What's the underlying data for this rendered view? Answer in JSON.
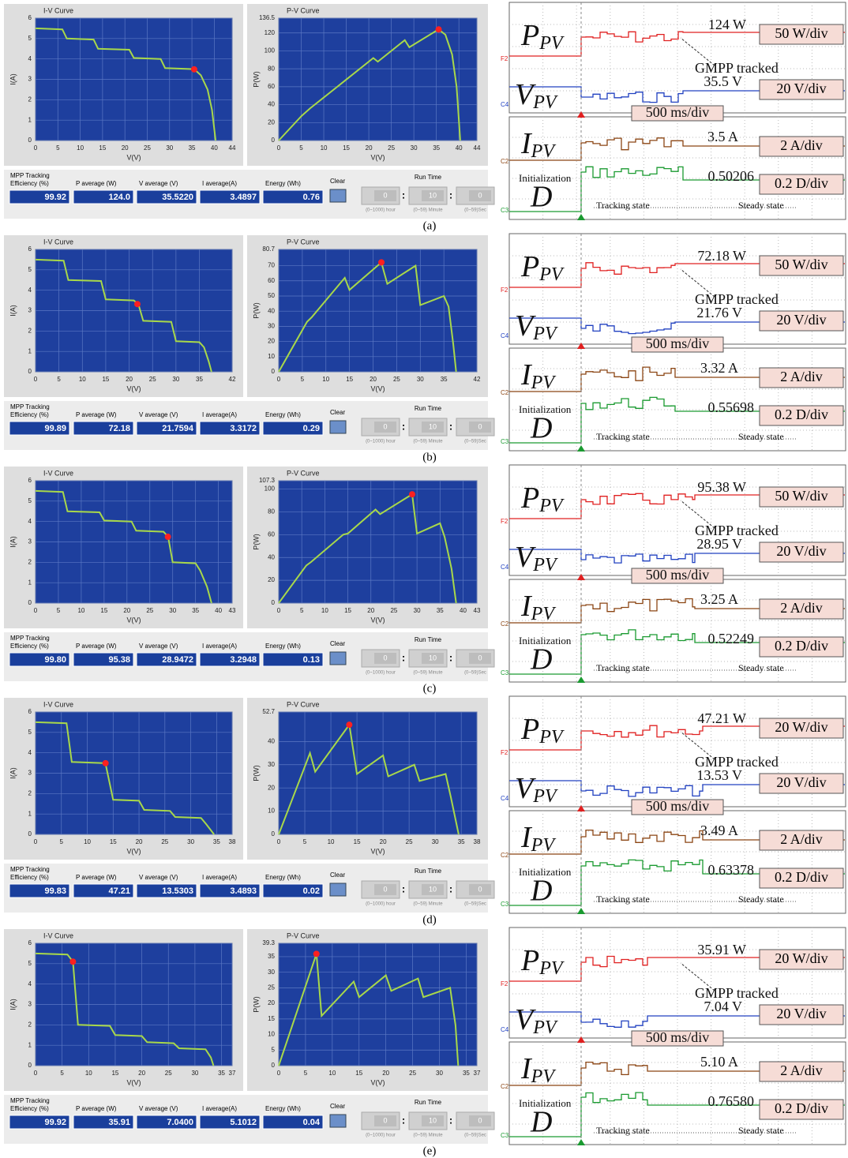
{
  "ui": {
    "eff_1": "MPP Tracking",
    "eff_2": "Efficiency (%)",
    "p_avg": "P average  (W)",
    "v_avg": "V average (V)",
    "i_avg": "I average(A)",
    "energy": "Energy  (Wh)",
    "clear": "Clear",
    "run_time": "Run Time",
    "hour_val": "0",
    "min_val": "10",
    "sec_val": "0",
    "colon": ":",
    "hour": "(0~1000) hour",
    "minute": "(0~59) Minute",
    "sec": "(0~59)Sec",
    "ch_p": "F2",
    "ch_v": "C4",
    "ch_i": "C2",
    "ch_d": "C3",
    "sym_p": {
      "main": "P",
      "sub": "PV"
    },
    "sym_v": {
      "main": "V",
      "sub": "PV"
    },
    "sym_i": {
      "main": "I",
      "sub": "PV"
    },
    "sym_d": "D",
    "gmpp": "GMPP tracked",
    "v_div": "20 V/div",
    "t_div": "500 ms/div",
    "i_div": "2 A/div",
    "d_div": "0.2 D/div",
    "init": "Initialization",
    "tracking": "Tracking state",
    "steady": "Steady state"
  },
  "panels": [
    {
      "label": "(a)",
      "iv_chart": {
        "type": "line",
        "title": "I-V Curve",
        "x_label": "V(V)",
        "y_label": "I(A)",
        "color": "#a8d84a",
        "marker_color": "#ff2020",
        "grid": true,
        "xlim": [
          0,
          44
        ],
        "xticks": [
          0,
          5,
          10,
          15,
          20,
          25,
          30,
          35,
          40,
          44
        ],
        "ylim": [
          0,
          6
        ],
        "yticks": [
          0,
          1,
          2,
          3,
          4,
          5,
          6
        ],
        "x": [
          0,
          6,
          7,
          13,
          14,
          21,
          22,
          28,
          29,
          35.5,
          37,
          38.5,
          39.5,
          40.3
        ],
        "values": [
          5.5,
          5.45,
          5.0,
          4.95,
          4.5,
          4.45,
          4.05,
          4.0,
          3.55,
          3.5,
          3.2,
          2.5,
          1.5,
          0
        ],
        "mpp": {
          "x": 35.5,
          "y": 3.49
        }
      },
      "pv_chart": {
        "type": "line",
        "title": "P-V Curve",
        "x_label": "V(V)",
        "y_label": "P(W)",
        "color": "#a8d84a",
        "marker_color": "#ff2020",
        "grid": true,
        "xlim": [
          0,
          44
        ],
        "xticks": [
          0,
          5,
          10,
          15,
          20,
          25,
          30,
          35,
          40,
          44
        ],
        "ylim": [
          0,
          136.5
        ],
        "yticks": [
          0,
          20,
          40,
          60,
          80,
          100,
          120,
          136.5
        ],
        "x": [
          0,
          5,
          7,
          13,
          14,
          21,
          22,
          28,
          29,
          35.5,
          37,
          38.5,
          39.5,
          40.3
        ],
        "values": [
          0,
          27,
          36,
          60,
          64,
          92,
          88,
          112,
          104,
          124,
          118,
          96,
          60,
          0
        ],
        "mpp": {
          "x": 35.5,
          "y": 124
        }
      },
      "stats": {
        "efficiency": "99.92",
        "p_avg": "124.0",
        "v_avg": "35.5220",
        "i_avg": "3.4897",
        "energy": "0.76"
      },
      "scope": {
        "p": "124 W",
        "p_div": "50 W/div",
        "v": "35.5 V",
        "i": "3.5 A",
        "d": "0.50206"
      }
    },
    {
      "label": "(b)",
      "iv_chart": {
        "type": "line",
        "title": "I-V Curve",
        "x_label": "V(V)",
        "y_label": "I(A)",
        "color": "#a8d84a",
        "marker_color": "#ff2020",
        "grid": true,
        "xlim": [
          0,
          42
        ],
        "xticks": [
          0,
          5,
          10,
          15,
          20,
          25,
          30,
          35,
          42
        ],
        "ylim": [
          0,
          6
        ],
        "yticks": [
          0,
          1,
          2,
          3,
          4,
          5,
          6
        ],
        "x": [
          0,
          6,
          7,
          14,
          15,
          21,
          22,
          23,
          29,
          30,
          35,
          36,
          37,
          37.6
        ],
        "values": [
          5.5,
          5.45,
          4.5,
          4.45,
          3.55,
          3.5,
          3.3,
          2.5,
          2.45,
          1.5,
          1.45,
          1.2,
          0.5,
          0
        ],
        "mpp": {
          "x": 21.76,
          "y": 3.32
        }
      },
      "pv_chart": {
        "type": "line",
        "title": "P-V Curve",
        "x_label": "V(V)",
        "y_label": "P(W)",
        "color": "#a8d84a",
        "marker_color": "#ff2020",
        "grid": true,
        "xlim": [
          0,
          42
        ],
        "xticks": [
          0,
          5,
          10,
          15,
          20,
          25,
          30,
          35,
          42
        ],
        "ylim": [
          0,
          80.7
        ],
        "yticks": [
          0,
          10,
          20,
          30,
          40,
          50,
          60,
          70,
          80.7
        ],
        "x": [
          0,
          6,
          7,
          14,
          15,
          21.76,
          23,
          29,
          30,
          35,
          36,
          37,
          37.6
        ],
        "values": [
          0,
          33,
          36,
          62,
          54,
          72.18,
          58,
          70,
          44,
          50,
          43,
          18,
          0
        ],
        "mpp": {
          "x": 21.76,
          "y": 72.18
        }
      },
      "stats": {
        "efficiency": "99.89",
        "p_avg": "72.18",
        "v_avg": "21.7594",
        "i_avg": "3.3172",
        "energy": "0.29"
      },
      "scope": {
        "p": "72.18 W",
        "p_div": "50 W/div",
        "v": "21.76 V",
        "i": "3.32 A",
        "d": "0.55698"
      }
    },
    {
      "label": "(c)",
      "iv_chart": {
        "type": "line",
        "title": "I-V Curve",
        "x_label": "V(V)",
        "y_label": "I(A)",
        "color": "#a8d84a",
        "marker_color": "#ff2020",
        "grid": true,
        "xlim": [
          0,
          43
        ],
        "xticks": [
          0,
          5,
          10,
          15,
          20,
          25,
          30,
          35,
          40,
          43
        ],
        "ylim": [
          0,
          6
        ],
        "yticks": [
          0,
          1,
          2,
          3,
          4,
          5,
          6
        ],
        "x": [
          0,
          6,
          7,
          14,
          15,
          21,
          22,
          28,
          29,
          30,
          35,
          36,
          37.5,
          38.5
        ],
        "values": [
          5.5,
          5.45,
          4.5,
          4.45,
          4.05,
          4.0,
          3.55,
          3.5,
          3.25,
          2.0,
          1.95,
          1.6,
          0.8,
          0
        ],
        "mpp": {
          "x": 28.95,
          "y": 3.25
        }
      },
      "pv_chart": {
        "type": "line",
        "title": "P-V Curve",
        "x_label": "V(V)",
        "y_label": "P(W)",
        "color": "#a8d84a",
        "marker_color": "#ff2020",
        "grid": true,
        "xlim": [
          0,
          43
        ],
        "xticks": [
          0,
          5,
          10,
          15,
          20,
          25,
          30,
          35,
          40,
          43
        ],
        "ylim": [
          0,
          107.3
        ],
        "yticks": [
          0,
          20,
          40,
          60,
          80,
          100,
          107.3
        ],
        "x": [
          0,
          6,
          7,
          14,
          15,
          21,
          22,
          28.95,
          30,
          35,
          36,
          37.5,
          38.5
        ],
        "values": [
          0,
          33,
          36,
          60,
          61,
          82,
          78,
          95.38,
          61,
          70,
          58,
          30,
          0
        ],
        "mpp": {
          "x": 28.95,
          "y": 95.38
        }
      },
      "stats": {
        "efficiency": "99.80",
        "p_avg": "95.38",
        "v_avg": "28.9472",
        "i_avg": "3.2948",
        "energy": "0.13"
      },
      "scope": {
        "p": "95.38 W",
        "p_div": "50 W/div",
        "v": "28.95 V",
        "i": "3.25 A",
        "d": "0.52249"
      }
    },
    {
      "label": "(d)",
      "iv_chart": {
        "type": "line",
        "title": "I-V Curve",
        "x_label": "V(V)",
        "y_label": "I(A)",
        "color": "#a8d84a",
        "marker_color": "#ff2020",
        "grid": true,
        "xlim": [
          0,
          38
        ],
        "xticks": [
          0,
          5,
          10,
          15,
          20,
          25,
          30,
          35,
          38
        ],
        "ylim": [
          0,
          6
        ],
        "yticks": [
          0,
          1,
          2,
          3,
          4,
          5,
          6
        ],
        "x": [
          0,
          6,
          7,
          13.5,
          15,
          20,
          21,
          26,
          27,
          32,
          33,
          34.5
        ],
        "values": [
          5.5,
          5.45,
          3.55,
          3.49,
          1.7,
          1.65,
          1.2,
          1.15,
          0.85,
          0.8,
          0.5,
          0
        ],
        "mpp": {
          "x": 13.53,
          "y": 3.49
        }
      },
      "pv_chart": {
        "type": "line",
        "title": "P-V Curve",
        "x_label": "V(V)",
        "y_label": "P(W)",
        "color": "#a8d84a",
        "marker_color": "#ff2020",
        "grid": true,
        "xlim": [
          0,
          38
        ],
        "xticks": [
          0,
          5,
          10,
          15,
          20,
          25,
          30,
          35,
          38
        ],
        "ylim": [
          0,
          52.7
        ],
        "yticks": [
          0,
          10,
          20,
          30,
          40,
          52.7
        ],
        "x": [
          0,
          6,
          7,
          13.53,
          15,
          20,
          21,
          26,
          27,
          32,
          33,
          34.5
        ],
        "values": [
          0,
          35,
          27,
          47.21,
          26,
          34,
          25,
          30,
          23,
          26,
          16,
          0
        ],
        "mpp": {
          "x": 13.53,
          "y": 47.21
        }
      },
      "stats": {
        "efficiency": "99.83",
        "p_avg": "47.21",
        "v_avg": "13.5303",
        "i_avg": "3.4893",
        "energy": "0.02"
      },
      "scope": {
        "p": "47.21 W",
        "p_div": "20 W/div",
        "v": "13.53 V",
        "i": "3.49 A",
        "d": "0.63378"
      }
    },
    {
      "label": "(e)",
      "iv_chart": {
        "type": "line",
        "title": "I-V Curve",
        "x_label": "V(V)",
        "y_label": "I(A)",
        "color": "#a8d84a",
        "marker_color": "#ff2020",
        "grid": true,
        "xlim": [
          0,
          37
        ],
        "xticks": [
          0,
          5,
          10,
          15,
          20,
          25,
          30,
          35,
          37
        ],
        "ylim": [
          0,
          6
        ],
        "yticks": [
          0,
          1,
          2,
          3,
          4,
          5,
          6
        ],
        "x": [
          0,
          6,
          7.04,
          8,
          14,
          15,
          20,
          21,
          26,
          27,
          32,
          33,
          33.5
        ],
        "values": [
          5.5,
          5.45,
          5.1,
          2.0,
          1.95,
          1.5,
          1.45,
          1.15,
          1.1,
          0.85,
          0.8,
          0.4,
          0
        ],
        "mpp": {
          "x": 7.04,
          "y": 5.1
        }
      },
      "pv_chart": {
        "type": "line",
        "title": "P-V Curve",
        "x_label": "V(V)",
        "y_label": "P(W)",
        "color": "#a8d84a",
        "marker_color": "#ff2020",
        "grid": true,
        "xlim": [
          0,
          37
        ],
        "xticks": [
          0,
          5,
          10,
          15,
          20,
          25,
          30,
          35,
          37
        ],
        "ylim": [
          0,
          39.3
        ],
        "yticks": [
          0,
          5,
          10,
          15,
          20,
          25,
          30,
          35,
          39.3
        ],
        "x": [
          0,
          7.04,
          8,
          14,
          15,
          20,
          21,
          26,
          27,
          32,
          33,
          33.5
        ],
        "values": [
          0,
          35.91,
          16,
          27,
          22,
          29,
          24,
          28,
          22,
          25,
          13,
          0
        ],
        "mpp": {
          "x": 7.04,
          "y": 35.91
        }
      },
      "stats": {
        "efficiency": "99.92",
        "p_avg": "35.91",
        "v_avg": "7.0400",
        "i_avg": "5.1012",
        "energy": "0.04"
      },
      "scope": {
        "p": "35.91 W",
        "p_div": "20 W/div",
        "v": "7.04 V",
        "i": "5.10 A",
        "d": "0.76580"
      }
    }
  ]
}
